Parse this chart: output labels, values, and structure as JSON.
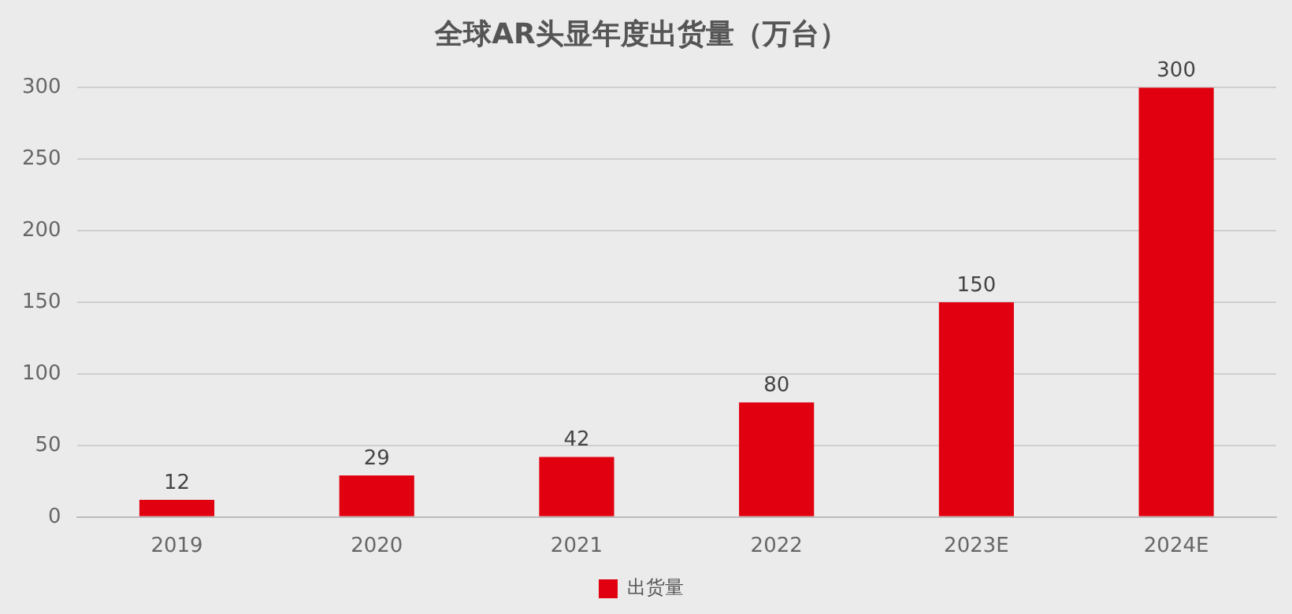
{
  "chart_data": {
    "type": "bar",
    "title": "全球AR头显年度出货量（万台）",
    "categories": [
      "2019",
      "2020",
      "2021",
      "2022",
      "2023E",
      "2024E"
    ],
    "series": [
      {
        "name": "出货量",
        "color": "#e1000f",
        "values": [
          12,
          29,
          42,
          80,
          150,
          300
        ]
      }
    ],
    "ylim": [
      0,
      300
    ],
    "yticks": [
      0,
      50,
      100,
      150,
      200,
      250,
      300
    ],
    "grid": "y",
    "legend": "bottom",
    "data_labels": true
  }
}
